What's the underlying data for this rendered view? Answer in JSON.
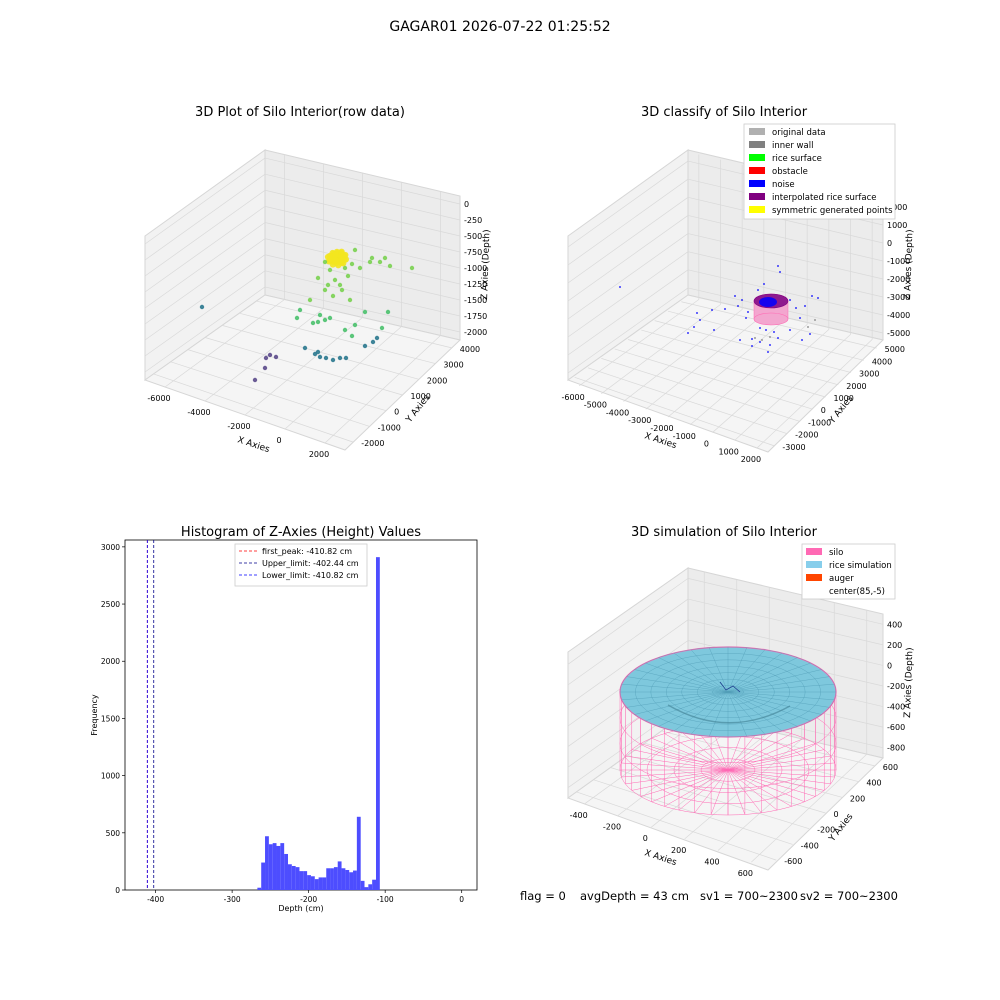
{
  "figure": {
    "suptitle": "GAGAR01 2026-07-22 01:25:52",
    "status_line": {
      "flag": "flag = 0",
      "avg_depth": "avgDepth = 43 cm",
      "sv1": "sv1 = 700~2300",
      "sv2": "sv2 = 700~2300"
    }
  },
  "chart_data": [
    {
      "type": "scatter3d",
      "title": "3D Plot of Silo Interior(row data)",
      "xlabel": "X Axies",
      "ylabel": "Y Axies",
      "zlabel": "Z Axies (Depth)",
      "xticks": [
        "-6000",
        "-4000",
        "-2000",
        "0",
        "2000"
      ],
      "yticks": [
        "-2000",
        "-1000",
        "0",
        "1000",
        "2000",
        "3000",
        "4000"
      ],
      "zticks": [
        "0",
        "-250",
        "-500",
        "-750",
        "-1000",
        "-1250",
        "-1500",
        "-1750",
        "-2000"
      ],
      "xlim": [
        -6500,
        2000
      ],
      "ylim": [
        -2000,
        4000
      ],
      "zlim": [
        -2000,
        0
      ],
      "colormap": "viridis"
    },
    {
      "type": "scatter3d",
      "title": "3D classify of Silo Interior",
      "xlabel": "X Axies",
      "ylabel": "Y Axies",
      "zlabel": "Z Axies (Depth)",
      "xticks": [
        "-6000",
        "-5000",
        "-4000",
        "-3000",
        "-2000",
        "-1000",
        "0",
        "1000",
        "2000"
      ],
      "yticks": [
        "-3000",
        "-2000",
        "-1000",
        "0",
        "1000",
        "2000",
        "3000",
        "4000",
        "5000"
      ],
      "zticks": [
        "2000",
        "1000",
        "0",
        "-1000",
        "-2000",
        "-3000",
        "-4000",
        "-5000"
      ],
      "legend": [
        {
          "name": "original data",
          "color": "#b0b0b0"
        },
        {
          "name": "inner wall",
          "color": "#808080"
        },
        {
          "name": "rice surface",
          "color": "#00ff00"
        },
        {
          "name": "obstacle",
          "color": "#ff0000"
        },
        {
          "name": "noise",
          "color": "#0000ff"
        },
        {
          "name": "interpolated rice surface",
          "color": "#800080"
        },
        {
          "name": "symmetric generated points",
          "color": "#ffff00"
        }
      ],
      "legend_position": "upper-right"
    },
    {
      "type": "histogram",
      "title": "Histogram of Z-Axies (Height) Values",
      "xlabel": "Depth (cm)",
      "ylabel": "Frequency",
      "xlim": [
        -440,
        20
      ],
      "ylim": [
        0,
        3060
      ],
      "xticks": [
        -400,
        -300,
        -200,
        -100,
        0
      ],
      "yticks": [
        0,
        500,
        1000,
        1500,
        2000,
        2500,
        3000
      ],
      "bar_color": "#4d4dff",
      "bins": [
        {
          "start": -267,
          "end": -262,
          "count": 20
        },
        {
          "start": -262,
          "end": -257,
          "count": 240
        },
        {
          "start": -257,
          "end": -252,
          "count": 470
        },
        {
          "start": -252,
          "end": -247,
          "count": 400
        },
        {
          "start": -247,
          "end": -242,
          "count": 410
        },
        {
          "start": -242,
          "end": -237,
          "count": 385
        },
        {
          "start": -237,
          "end": -232,
          "count": 410
        },
        {
          "start": -232,
          "end": -227,
          "count": 315
        },
        {
          "start": -227,
          "end": -222,
          "count": 225
        },
        {
          "start": -222,
          "end": -217,
          "count": 210
        },
        {
          "start": -217,
          "end": -212,
          "count": 200
        },
        {
          "start": -212,
          "end": -207,
          "count": 165
        },
        {
          "start": -207,
          "end": -202,
          "count": 165
        },
        {
          "start": -202,
          "end": -197,
          "count": 130
        },
        {
          "start": -197,
          "end": -192,
          "count": 120
        },
        {
          "start": -192,
          "end": -187,
          "count": 95
        },
        {
          "start": -187,
          "end": -182,
          "count": 110
        },
        {
          "start": -182,
          "end": -177,
          "count": 110
        },
        {
          "start": -177,
          "end": -172,
          "count": 190
        },
        {
          "start": -172,
          "end": -167,
          "count": 190
        },
        {
          "start": -167,
          "end": -162,
          "count": 200
        },
        {
          "start": -162,
          "end": -157,
          "count": 250
        },
        {
          "start": -157,
          "end": -152,
          "count": 190
        },
        {
          "start": -152,
          "end": -147,
          "count": 175
        },
        {
          "start": -147,
          "end": -142,
          "count": 155
        },
        {
          "start": -142,
          "end": -137,
          "count": 170
        },
        {
          "start": -137,
          "end": -132,
          "count": 640
        },
        {
          "start": -132,
          "end": -127,
          "count": 80
        },
        {
          "start": -127,
          "end": -122,
          "count": 25
        },
        {
          "start": -122,
          "end": -117,
          "count": 50
        },
        {
          "start": -117,
          "end": -112,
          "count": 90
        },
        {
          "start": -112,
          "end": -107,
          "count": 2910
        }
      ],
      "vlines": [
        {
          "label": "first_peak: -410.82 cm",
          "x": -410.82,
          "color": "#ff0000"
        },
        {
          "label": "Upper_limit: -402.44 cm",
          "x": -402.44,
          "color": "#00008b"
        },
        {
          "label": "Lower_limit: -410.82 cm",
          "x": -410.82,
          "color": "#0000ff"
        }
      ]
    },
    {
      "type": "surface3d",
      "title": "3D simulation of Silo Interior",
      "xlabel": "X Axies",
      "ylabel": "Y Axies",
      "zlabel": "Z Axies (Depth)",
      "xticks": [
        "-400",
        "-200",
        "0",
        "200",
        "400",
        "600"
      ],
      "yticks": [
        "-600",
        "-400",
        "-200",
        "0",
        "200",
        "400",
        "600"
      ],
      "zticks": [
        "400",
        "200",
        "0",
        "-200",
        "-400",
        "-600",
        "-800"
      ],
      "legend": [
        {
          "name": "silo",
          "color": "#ff69b4"
        },
        {
          "name": "rice simulation",
          "color": "#87ceeb"
        },
        {
          "name": "auger",
          "color": "#ff4500"
        },
        {
          "name": "center(85,-5)",
          "color": "#ffffff"
        }
      ],
      "legend_position": "upper-right"
    }
  ]
}
